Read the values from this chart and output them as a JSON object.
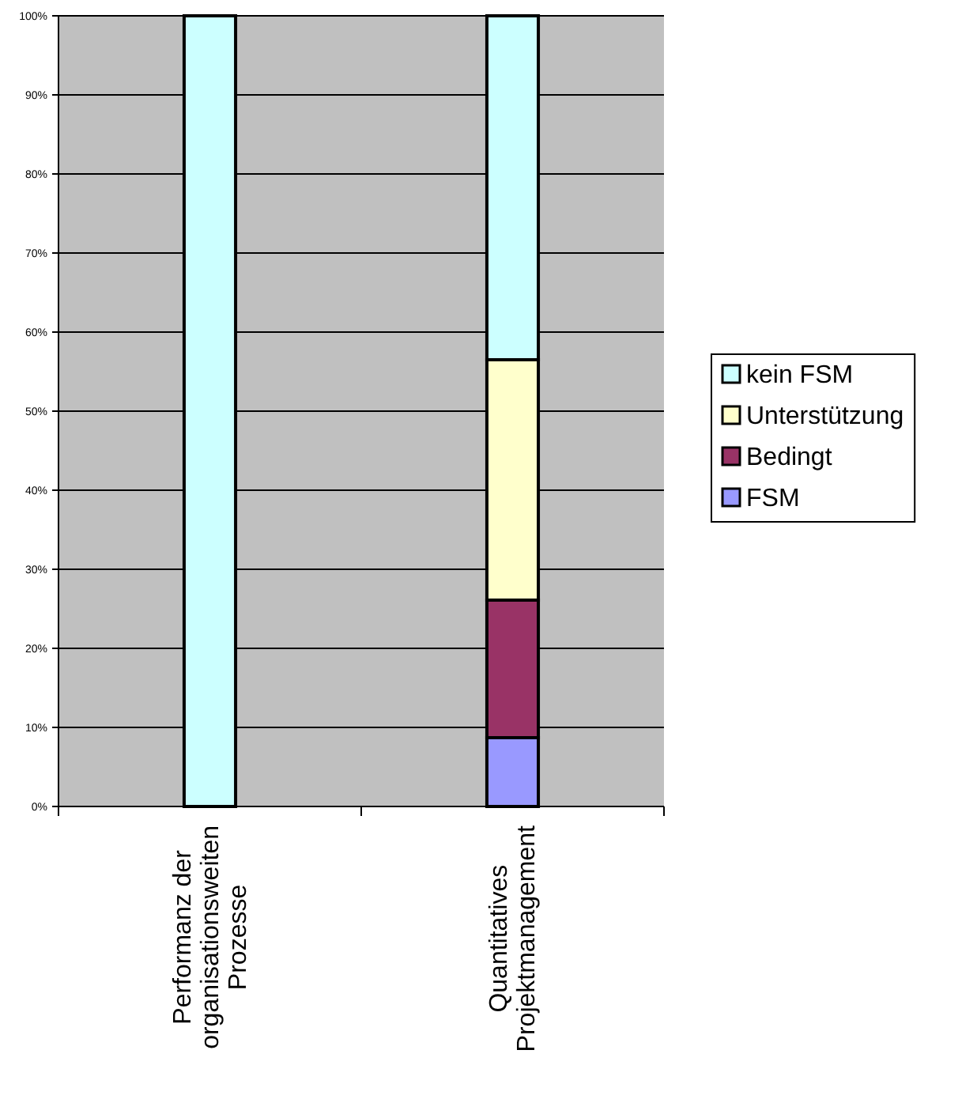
{
  "chart_data": {
    "type": "bar",
    "stacked": true,
    "categories": [
      "Performanz der organisationsweiten Prozesse",
      "Quantitatives Projektmanagement"
    ],
    "series": [
      {
        "name": "FSM",
        "color": "#9999ff",
        "values": [
          0,
          8.7
        ]
      },
      {
        "name": "Bedingt",
        "color": "#993366",
        "values": [
          0,
          17.4
        ]
      },
      {
        "name": "Unterstützung",
        "color": "#ffffcc",
        "values": [
          0,
          30.4
        ]
      },
      {
        "name": "kein FSM",
        "color": "#ccffff",
        "values": [
          100,
          43.5
        ]
      }
    ],
    "ylim": [
      0,
      100
    ],
    "yticks": [
      {
        "value": 0,
        "label": "0%"
      },
      {
        "value": 10,
        "label": "10%"
      },
      {
        "value": 20,
        "label": "20%"
      },
      {
        "value": 30,
        "label": "30%"
      },
      {
        "value": 40,
        "label": "40%"
      },
      {
        "value": 50,
        "label": "50%"
      },
      {
        "value": 60,
        "label": "60%"
      },
      {
        "value": 70,
        "label": "70%"
      },
      {
        "value": 80,
        "label": "80%"
      },
      {
        "value": 90,
        "label": "90%"
      },
      {
        "value": 100,
        "label": "100%"
      }
    ],
    "grid": "y",
    "legend": "right"
  }
}
